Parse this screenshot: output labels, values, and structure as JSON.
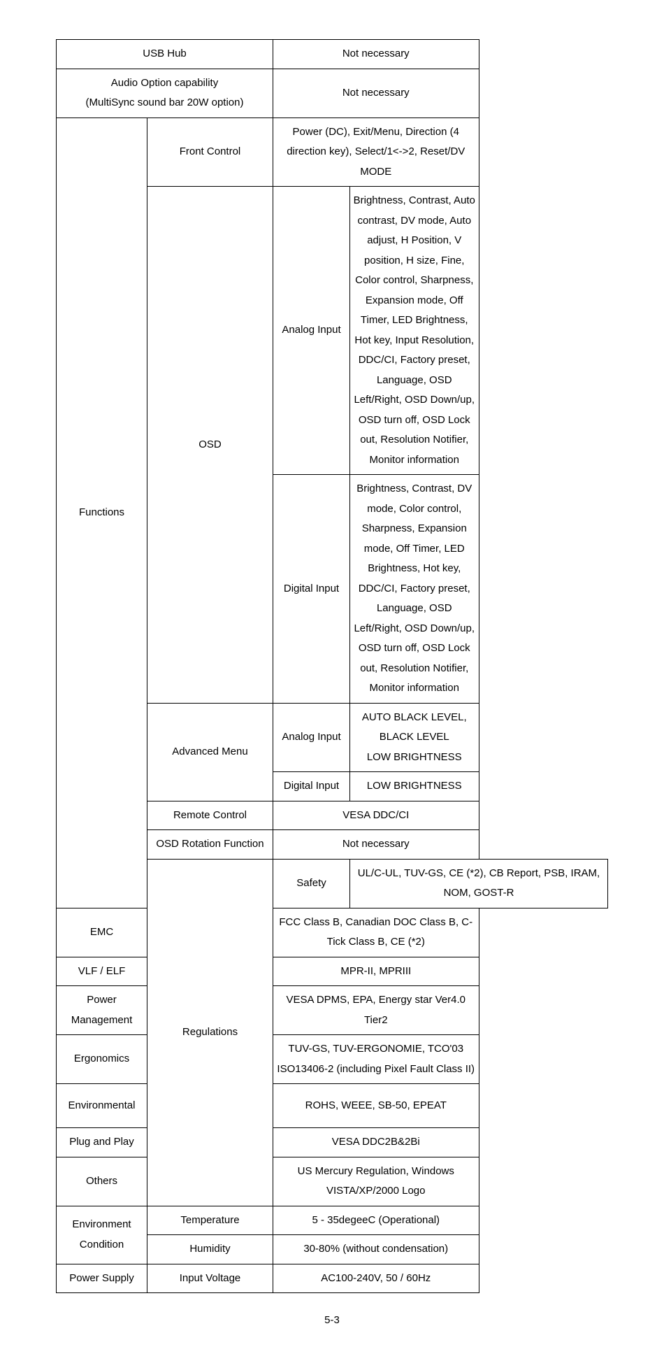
{
  "rows": {
    "usb_hub": {
      "label": "USB Hub",
      "value": "Not necessary"
    },
    "audio": {
      "label": "Audio Option capability\n(MultiSync sound bar 20W option)",
      "value": "Not necessary"
    },
    "functions": {
      "label": "Functions",
      "front_control": {
        "label": "Front Control",
        "value": "Power (DC), Exit/Menu, Direction (4 direction key), Select/1<->2, Reset/DV MODE"
      },
      "osd": {
        "label": "OSD",
        "analog": {
          "label": "Analog Input",
          "value": "Brightness, Contrast, Auto contrast, DV mode, Auto adjust, H Position, V position, H size, Fine, Color control, Sharpness, Expansion mode, Off Timer, LED Brightness, Hot key, Input Resolution, DDC/CI, Factory preset, Language, OSD Left/Right, OSD Down/up, OSD turn off, OSD Lock out, Resolution Notifier, Monitor information"
        },
        "digital": {
          "label": "Digital Input",
          "value": "Brightness, Contrast, DV mode, Color control, Sharpness, Expansion mode, Off Timer, LED Brightness, Hot key, DDC/CI, Factory preset, Language, OSD Left/Right, OSD Down/up, OSD turn off, OSD Lock out, Resolution Notifier, Monitor information"
        }
      },
      "advanced_menu": {
        "label": "Advanced Menu",
        "analog": {
          "label": "Analog Input",
          "value": "AUTO BLACK LEVEL,\nBLACK LEVEL\nLOW BRIGHTNESS"
        },
        "digital": {
          "label": "Digital Input",
          "value": "LOW BRIGHTNESS"
        }
      },
      "remote_control": {
        "label": "Remote Control",
        "value": "VESA DDC/CI"
      },
      "osd_rotation": {
        "label": "OSD Rotation Function",
        "value": "Not necessary"
      }
    },
    "regulations": {
      "label": "Regulations",
      "safety": {
        "label": "Safety",
        "value": "UL/C-UL, TUV-GS, CE (*2), CB Report, PSB, IRAM, NOM, GOST-R"
      },
      "emc": {
        "label": "EMC",
        "value": "FCC Class B, Canadian DOC Class B, C-Tick Class B, CE (*2)"
      },
      "vlf_elf": {
        "label": "VLF / ELF",
        "value": "MPR-II, MPRIII"
      },
      "power_mgmt": {
        "label": "Power Management",
        "value": "VESA DPMS, EPA, Energy star Ver4.0 Tier2"
      },
      "ergonomics": {
        "label": "Ergonomics",
        "value": "TUV-GS, TUV-ERGONOMIE, TCO'03\nISO13406-2 (including Pixel Fault Class II)"
      },
      "environmental": {
        "label": "Environmental",
        "value": "ROHS, WEEE, SB-50, EPEAT"
      },
      "plug_play": {
        "label": "Plug and Play",
        "value": "VESA DDC2B&2Bi"
      },
      "others": {
        "label": "Others",
        "value": "US Mercury Regulation, Windows VISTA/XP/2000 Logo"
      }
    },
    "environment": {
      "label": "Environment Condition",
      "temperature": {
        "label": "Temperature",
        "value": "5 - 35degeeC (Operational)"
      },
      "humidity": {
        "label": "Humidity",
        "value": "30-80% (without condensation)"
      }
    },
    "power_supply": {
      "label": "Power Supply",
      "input_voltage": {
        "label": "Input Voltage",
        "value": "AC100-240V, 50 / 60Hz"
      }
    }
  },
  "page_number": "5-3"
}
